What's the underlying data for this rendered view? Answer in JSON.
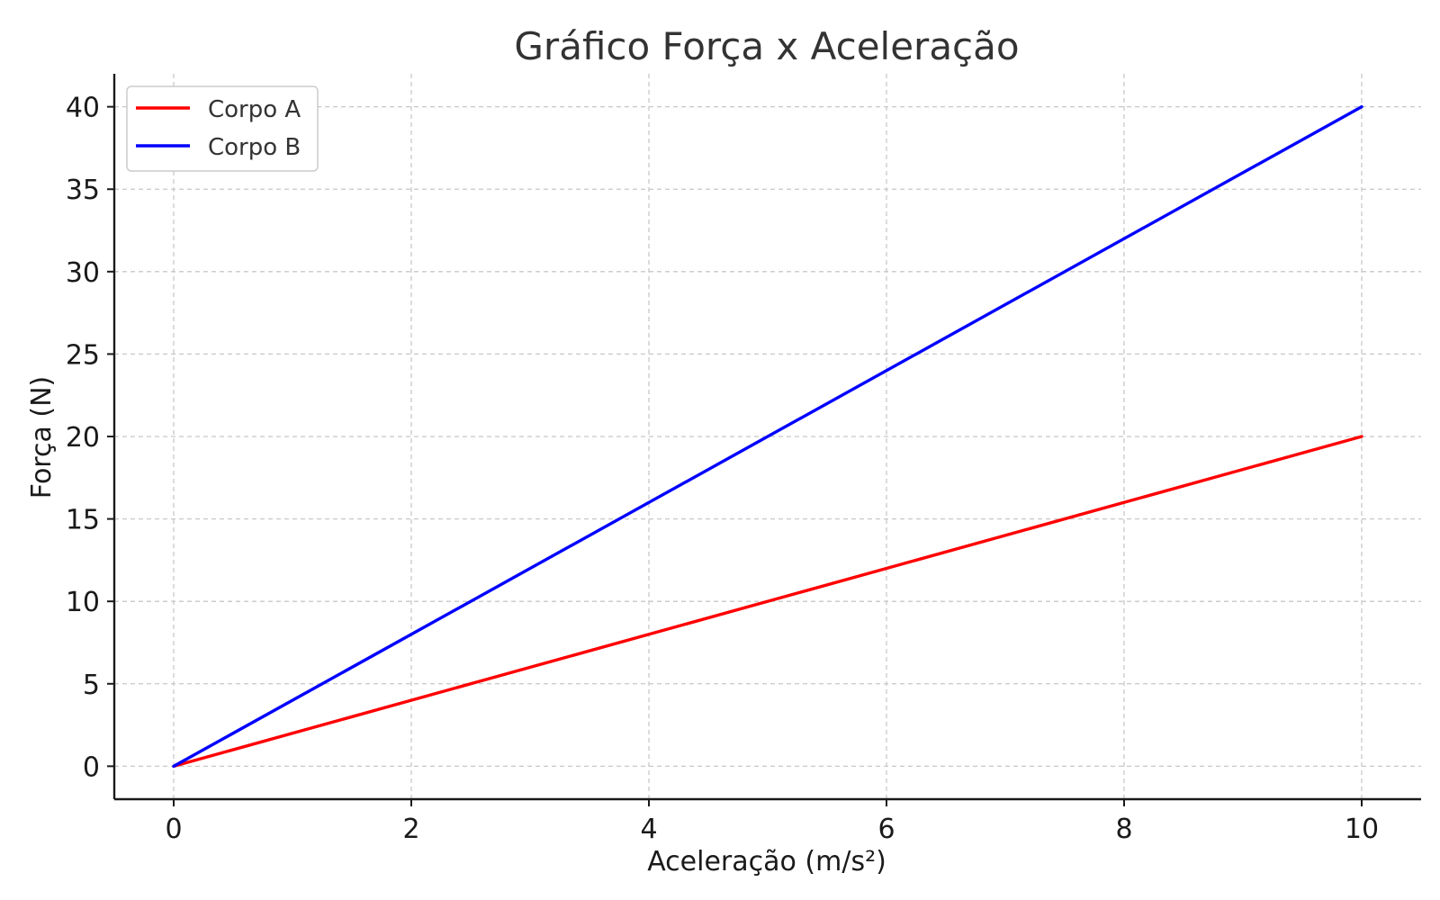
{
  "chart_data": {
    "type": "line",
    "title": "Gráfico Força x Aceleração",
    "xlabel": "Aceleração (m/s²)",
    "ylabel": "Força (N)",
    "xlim": [
      -0.5,
      10.5
    ],
    "ylim": [
      -2,
      42
    ],
    "xticks": [
      0,
      2,
      4,
      6,
      8,
      10
    ],
    "yticks": [
      0,
      5,
      10,
      15,
      20,
      25,
      30,
      35,
      40
    ],
    "grid": true,
    "legend_position": "top-left",
    "series": [
      {
        "name": "Corpo A",
        "color": "#ff0000",
        "x": [
          0,
          10
        ],
        "y": [
          0,
          20
        ]
      },
      {
        "name": "Corpo B",
        "color": "#0000ff",
        "x": [
          0,
          10
        ],
        "y": [
          0,
          40
        ]
      }
    ]
  }
}
